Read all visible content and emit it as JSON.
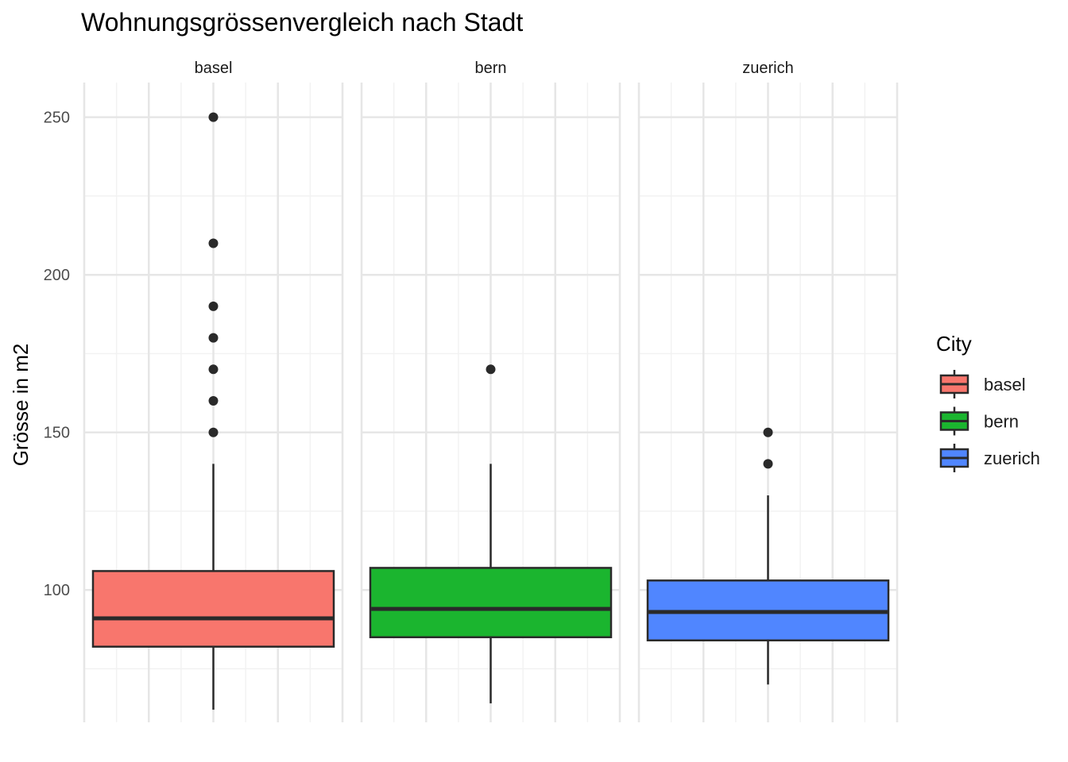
{
  "chart_data": {
    "type": "boxplot",
    "title": "Wohnungsgrössenvergleich nach Stadt",
    "xlabel": "",
    "ylabel": "Grösse in m2",
    "ylim": [
      58,
      261
    ],
    "yticks": [
      100,
      150,
      200,
      250
    ],
    "grid": true,
    "legend": {
      "title": "City",
      "position": "right",
      "entries": [
        "basel",
        "bern",
        "zuerich"
      ]
    },
    "colors": {
      "basel": "#F8766D",
      "bern": "#1BB52F",
      "zuerich": "#5086FF",
      "outline": "#2a2a2a",
      "grid_major": "#e6e6e6",
      "grid_minor": "#f2f2f2"
    },
    "facets": [
      {
        "name": "basel",
        "min": 62,
        "q1": 82,
        "median": 91,
        "q3": 106,
        "max": 140,
        "outliers": [
          150,
          160,
          170,
          180,
          190,
          210,
          250
        ]
      },
      {
        "name": "bern",
        "min": 64,
        "q1": 85,
        "median": 94,
        "q3": 107,
        "max": 140,
        "outliers": [
          170
        ]
      },
      {
        "name": "zuerich",
        "min": 70,
        "q1": 84,
        "median": 93,
        "q3": 103,
        "max": 130,
        "outliers": [
          140,
          150
        ]
      }
    ]
  }
}
